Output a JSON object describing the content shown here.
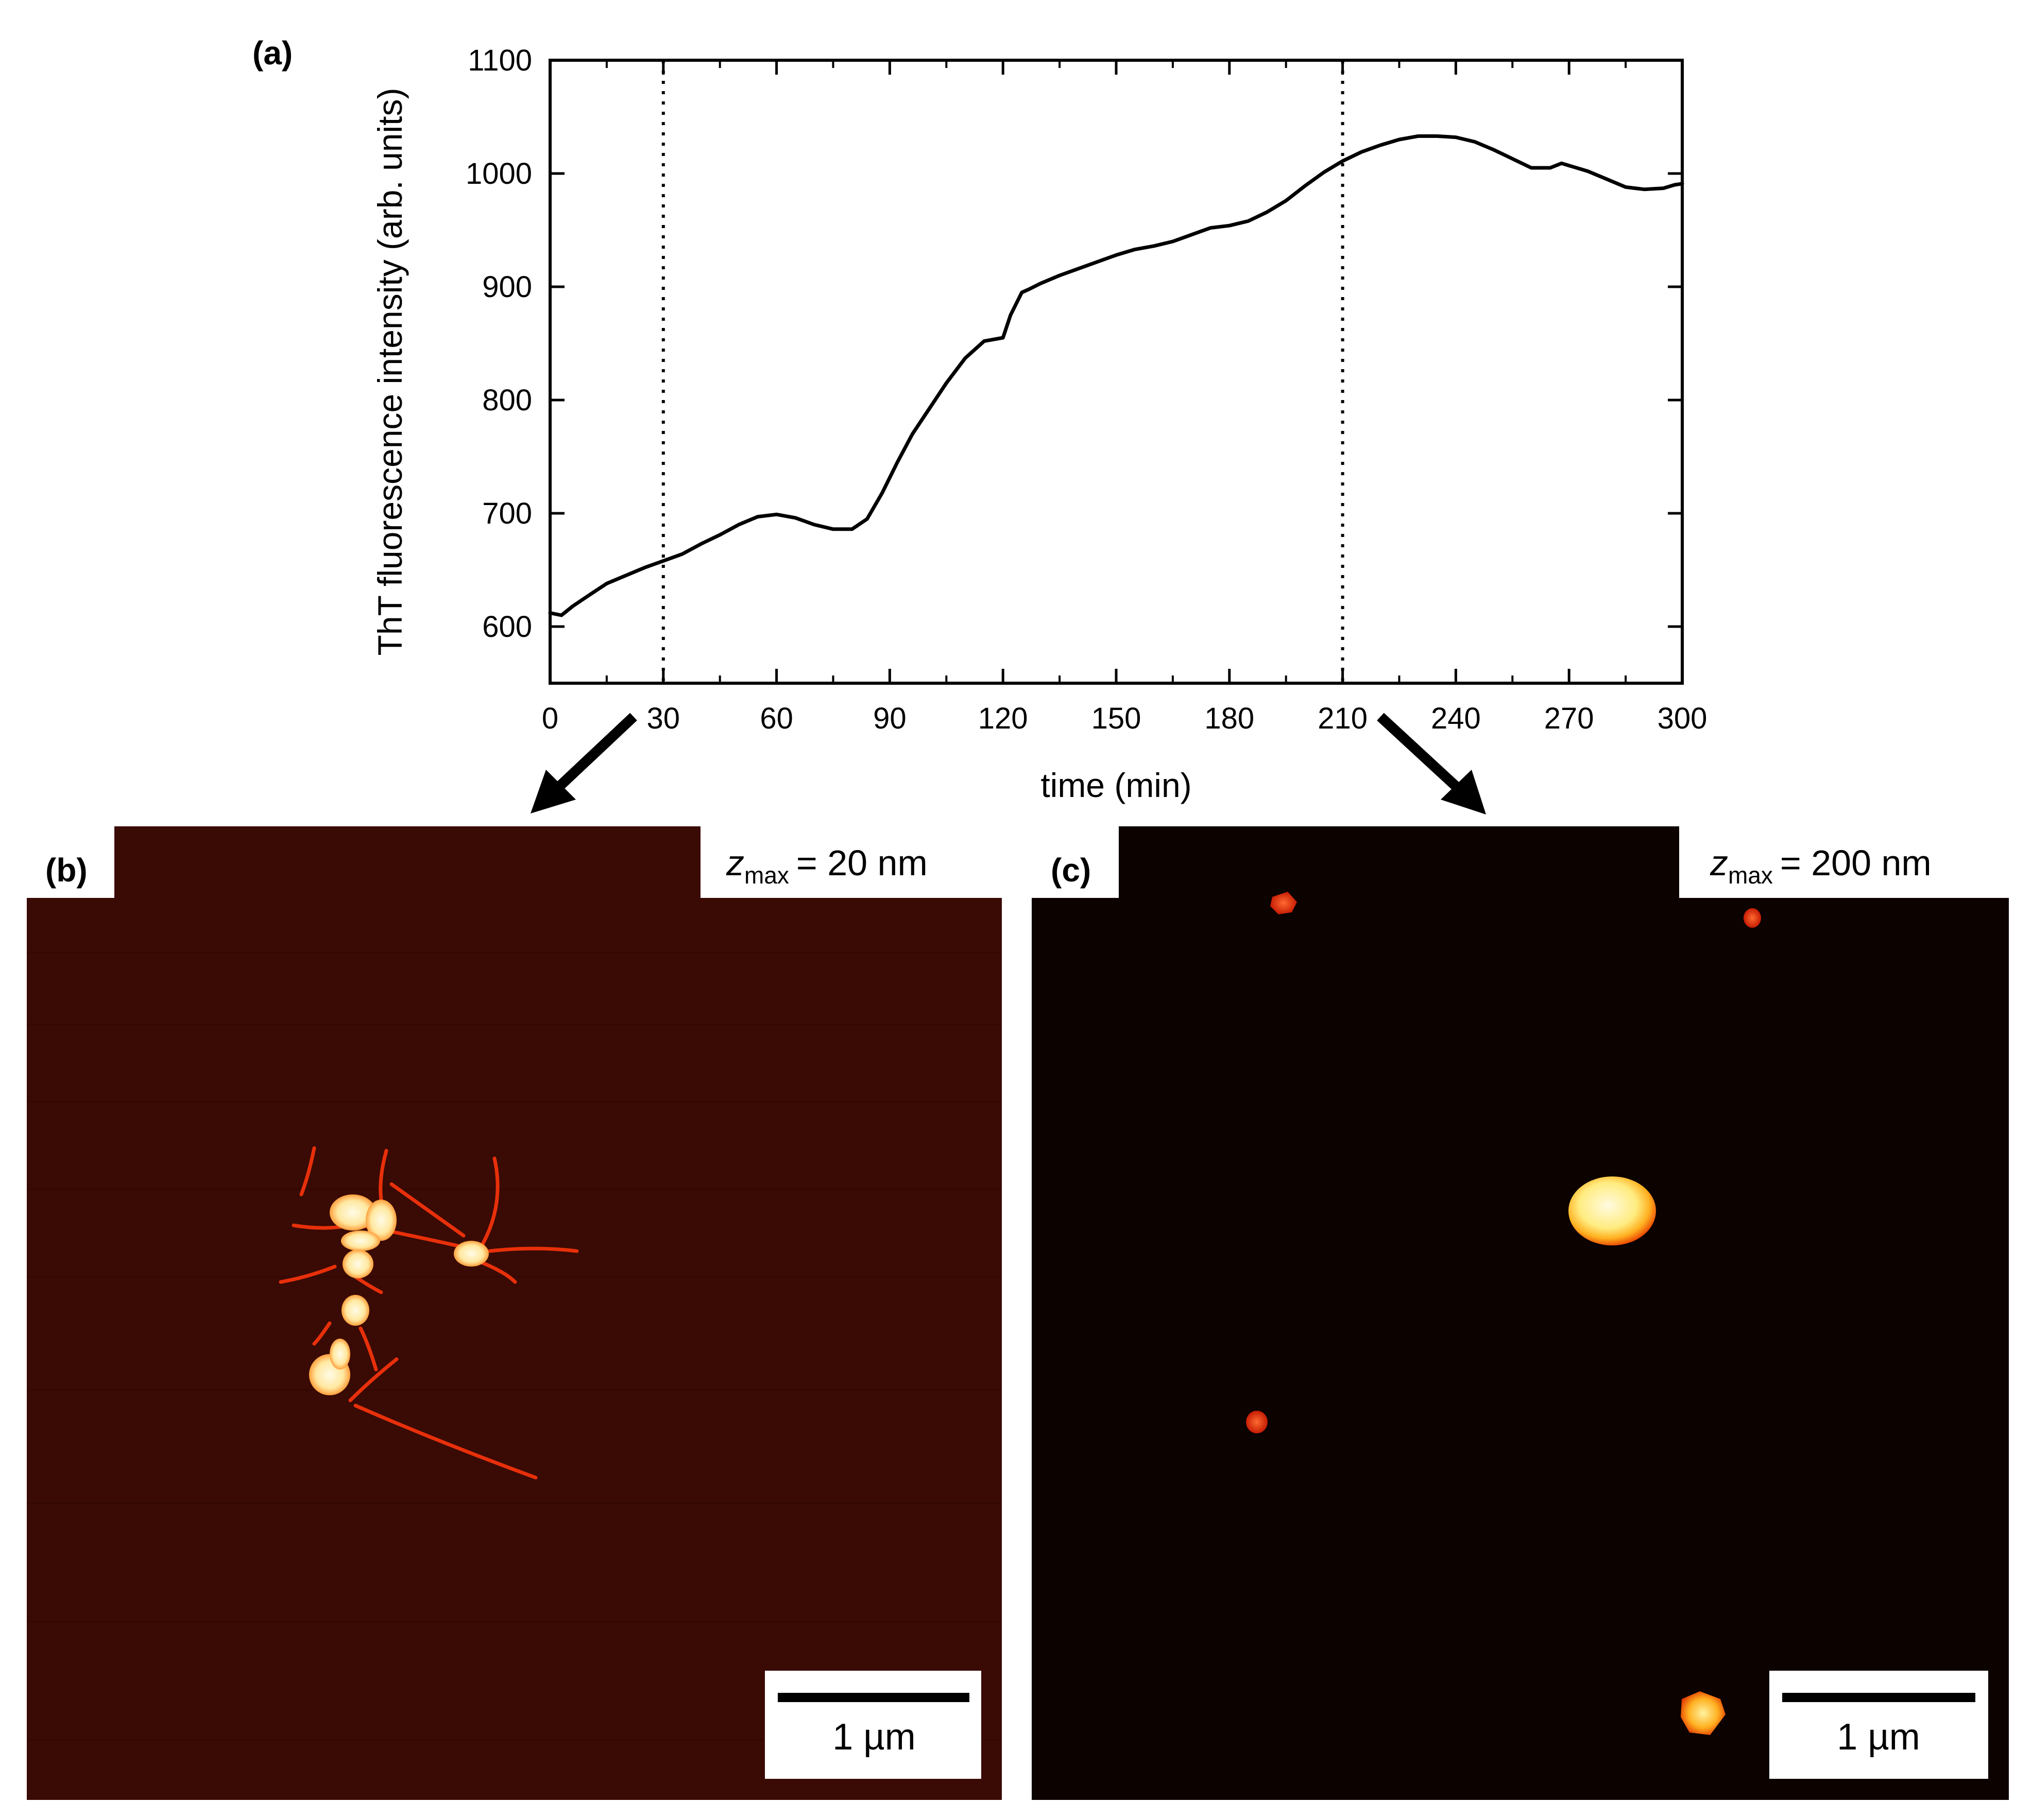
{
  "panels": {
    "a": {
      "label": "(a)"
    },
    "b": {
      "label": "(b)",
      "zmax_symbol": "z",
      "zmax_subscript": "max",
      "zmax_value": "= 20 nm",
      "scale_bar": "1 µm"
    },
    "c": {
      "label": "(c)",
      "zmax_symbol": "z",
      "zmax_subscript": "max",
      "zmax_value": "= 200 nm",
      "scale_bar": "1 µm"
    }
  },
  "colors": {
    "line": "#000000",
    "afm_b_background": "#3a0a04",
    "afm_c_background": "#0c0200",
    "fibril": "#e8300a",
    "aggregate_core": "#fff6c0",
    "aggregate_edge": "#ff7a10"
  },
  "chart_data": {
    "type": "line",
    "title": "",
    "xlabel": "time (min)",
    "ylabel": "ThT fluorescence intensity (arb. units)",
    "xlim": [
      0,
      300
    ],
    "ylim": [
      550,
      1100
    ],
    "xticks": [
      0,
      30,
      60,
      90,
      120,
      150,
      180,
      210,
      240,
      270,
      300
    ],
    "yticks": [
      600,
      700,
      800,
      900,
      1000,
      1100
    ],
    "vertical_markers": [
      30,
      210
    ],
    "grid": false,
    "series": [
      {
        "x": [
          0,
          3,
          6,
          10,
          15,
          20,
          25,
          30,
          35,
          40,
          45,
          50,
          55,
          60,
          65,
          70,
          75,
          80,
          84,
          88,
          92,
          96,
          100,
          105,
          110,
          115,
          120,
          122,
          125,
          127,
          130,
          135,
          140,
          145,
          150,
          155,
          160,
          165,
          170,
          175,
          180,
          185,
          190,
          195,
          200,
          205,
          210,
          215,
          220,
          225,
          230,
          235,
          240,
          245,
          250,
          255,
          260,
          265,
          268,
          270,
          275,
          280,
          285,
          290,
          295,
          298,
          300
        ],
        "y": [
          612,
          610,
          618,
          627,
          638,
          645,
          652,
          658,
          664,
          673,
          681,
          690,
          697,
          699,
          696,
          690,
          686,
          686,
          695,
          718,
          745,
          770,
          790,
          815,
          837,
          852,
          855,
          875,
          895,
          898,
          903,
          910,
          916,
          922,
          928,
          933,
          936,
          940,
          946,
          952,
          954,
          958,
          966,
          976,
          989,
          1001,
          1011,
          1019,
          1025,
          1030,
          1033,
          1033,
          1032,
          1028,
          1021,
          1013,
          1005,
          1005,
          1009,
          1007,
          1002,
          995,
          988,
          986,
          987,
          990,
          991
        ]
      }
    ]
  }
}
